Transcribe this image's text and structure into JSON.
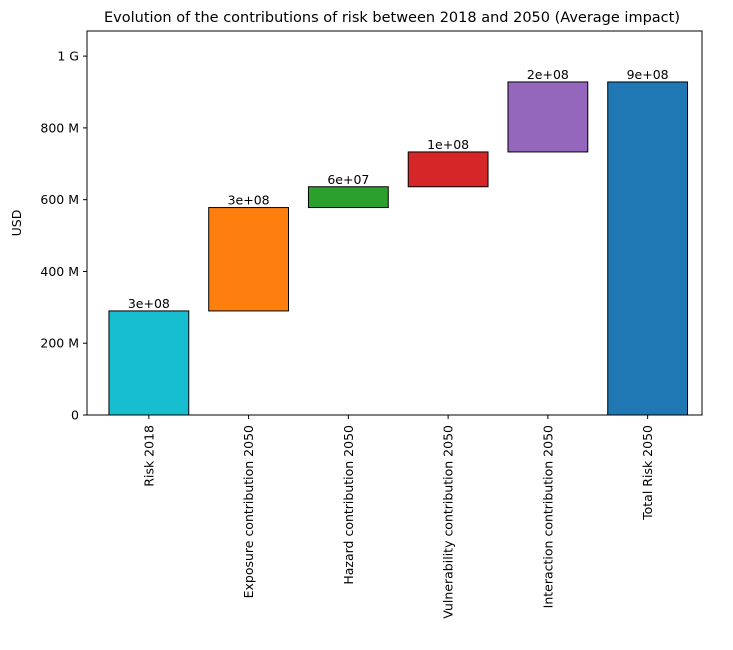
{
  "chart_data": {
    "type": "bar",
    "subtype": "waterfall",
    "title": "Evolution of the contributions of risk between 2018 and 2050 (Average impact)",
    "xlabel": "",
    "ylabel": "USD",
    "ylim": [
      0,
      1070000000
    ],
    "grid": false,
    "yticks": [
      {
        "value": 0,
        "label": "0"
      },
      {
        "value": 200000000,
        "label": "200 M"
      },
      {
        "value": 400000000,
        "label": "400 M"
      },
      {
        "value": 600000000,
        "label": "600 M"
      },
      {
        "value": 800000000,
        "label": "800 M"
      },
      {
        "value": 1000000000,
        "label": "1 G"
      }
    ],
    "bars": [
      {
        "category": "Risk 2018",
        "start": 0,
        "end": 290000000,
        "label": "3e+08",
        "color": "#17becf"
      },
      {
        "category": "Exposure contribution 2050",
        "start": 290000000,
        "end": 578000000,
        "label": "3e+08",
        "color": "#ff7f0e"
      },
      {
        "category": "Hazard contribution 2050",
        "start": 578000000,
        "end": 636000000,
        "label": "6e+07",
        "color": "#2ca02c"
      },
      {
        "category": "Vulnerability contribution 2050",
        "start": 636000000,
        "end": 733000000,
        "label": "1e+08",
        "color": "#d62728"
      },
      {
        "category": "Interaction contribution 2050",
        "start": 733000000,
        "end": 928000000,
        "label": "2e+08",
        "color": "#9467bd"
      },
      {
        "category": "Total Risk 2050",
        "start": 0,
        "end": 928000000,
        "label": "9e+08",
        "color": "#1f77b4"
      }
    ]
  }
}
